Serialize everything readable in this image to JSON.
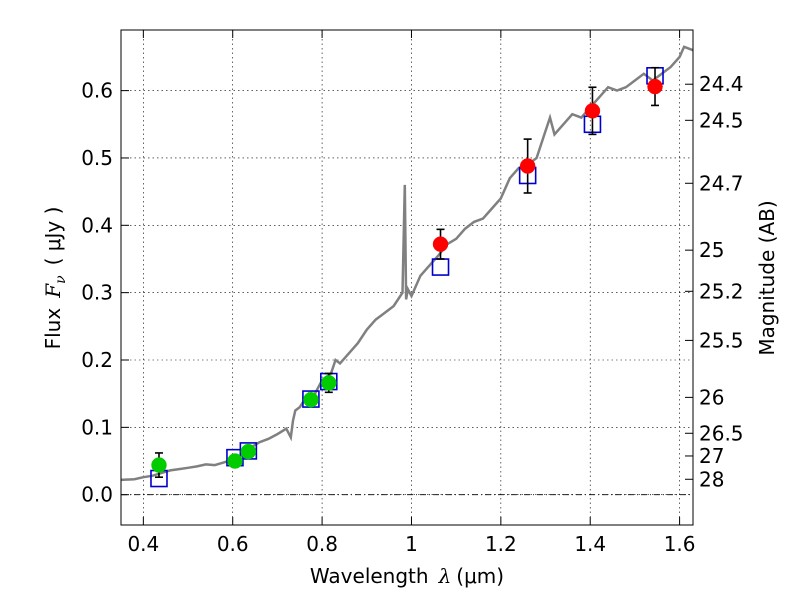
{
  "chart_data": {
    "type": "scatter",
    "xlabel": {
      "pre": "Wavelength",
      "sym": "λ",
      "unit": "(μm)"
    },
    "ylabel": {
      "pre": "Flux",
      "sym": "F",
      "sub": "ν",
      "unit": "( μJy )"
    },
    "y2label": "Magnitude (AB)",
    "xlim": [
      0.35,
      1.63
    ],
    "ylim": [
      -0.045,
      0.69
    ],
    "xticks": [
      0.4,
      0.6,
      0.8,
      1.0,
      1.2,
      1.4,
      1.6
    ],
    "xtick_labels": [
      "0.4",
      "0.6",
      "0.8",
      "1",
      "1.2",
      "1.4",
      "1.6"
    ],
    "yticks": [
      0.0,
      0.1,
      0.2,
      0.3,
      0.4,
      0.5,
      0.6
    ],
    "ytick_labels": [
      "0.0",
      "0.1",
      "0.2",
      "0.3",
      "0.4",
      "0.5",
      "0.6"
    ],
    "magnitude_ticks": [
      {
        "label": "24.4",
        "flux": 0.6095
      },
      {
        "label": "24.5",
        "flux": 0.5559
      },
      {
        "label": "24.7",
        "flux": 0.4624
      },
      {
        "label": "25",
        "flux": 0.3631
      },
      {
        "label": "25.2",
        "flux": 0.302
      },
      {
        "label": "25.5",
        "flux": 0.2291
      },
      {
        "label": "26",
        "flux": 0.1445
      },
      {
        "label": "26.5",
        "flux": 0.0912
      },
      {
        "label": "27",
        "flux": 0.0575
      },
      {
        "label": "28",
        "flux": 0.0229
      }
    ],
    "grid": true,
    "model_spectrum": {
      "color": "#808080",
      "x": [
        0.35,
        0.38,
        0.4,
        0.42,
        0.44,
        0.46,
        0.48,
        0.5,
        0.52,
        0.54,
        0.56,
        0.58,
        0.6,
        0.62,
        0.64,
        0.66,
        0.68,
        0.7,
        0.72,
        0.73,
        0.735,
        0.74,
        0.75,
        0.76,
        0.77,
        0.78,
        0.8,
        0.82,
        0.83,
        0.84,
        0.86,
        0.88,
        0.9,
        0.92,
        0.94,
        0.96,
        0.98,
        0.985,
        0.988,
        0.992,
        1.0,
        1.02,
        1.04,
        1.06,
        1.08,
        1.1,
        1.12,
        1.14,
        1.16,
        1.18,
        1.2,
        1.22,
        1.24,
        1.26,
        1.28,
        1.3,
        1.31,
        1.32,
        1.34,
        1.36,
        1.38,
        1.4,
        1.42,
        1.44,
        1.46,
        1.48,
        1.5,
        1.52,
        1.54,
        1.56,
        1.58,
        1.6,
        1.61,
        1.63
      ],
      "y": [
        0.022,
        0.023,
        0.026,
        0.028,
        0.032,
        0.036,
        0.038,
        0.04,
        0.042,
        0.045,
        0.044,
        0.048,
        0.052,
        0.058,
        0.07,
        0.078,
        0.083,
        0.09,
        0.098,
        0.085,
        0.11,
        0.125,
        0.13,
        0.14,
        0.15,
        0.145,
        0.17,
        0.18,
        0.2,
        0.195,
        0.21,
        0.225,
        0.245,
        0.26,
        0.27,
        0.28,
        0.3,
        0.46,
        0.29,
        0.305,
        0.295,
        0.325,
        0.34,
        0.355,
        0.372,
        0.38,
        0.395,
        0.405,
        0.41,
        0.425,
        0.44,
        0.47,
        0.485,
        0.49,
        0.5,
        0.54,
        0.56,
        0.535,
        0.55,
        0.565,
        0.56,
        0.575,
        0.59,
        0.605,
        0.6,
        0.605,
        0.615,
        0.625,
        0.615,
        0.625,
        0.635,
        0.65,
        0.665,
        0.66
      ]
    },
    "series": [
      {
        "marker": "square",
        "color": "#0000cc",
        "x": [
          0.435,
          0.605,
          0.635,
          0.775,
          0.815,
          1.065,
          1.26,
          1.405,
          1.545
        ],
        "y": [
          0.024,
          0.055,
          0.065,
          0.142,
          0.168,
          0.338,
          0.474,
          0.55,
          0.622
        ]
      },
      {
        "marker": "circle",
        "color": "#00cc00",
        "x": [
          0.435,
          0.605,
          0.635,
          0.775,
          0.815
        ],
        "y": [
          0.044,
          0.05,
          0.064,
          0.141,
          0.166
        ],
        "err": [
          0.018,
          0.006,
          0.006,
          0.007,
          0.014
        ]
      },
      {
        "marker": "circle",
        "color": "#ff0000",
        "x": [
          1.065,
          1.26,
          1.405,
          1.545
        ],
        "y": [
          0.372,
          0.488,
          0.57,
          0.606
        ],
        "err": [
          0.022,
          0.04,
          0.035,
          0.028
        ]
      }
    ]
  }
}
